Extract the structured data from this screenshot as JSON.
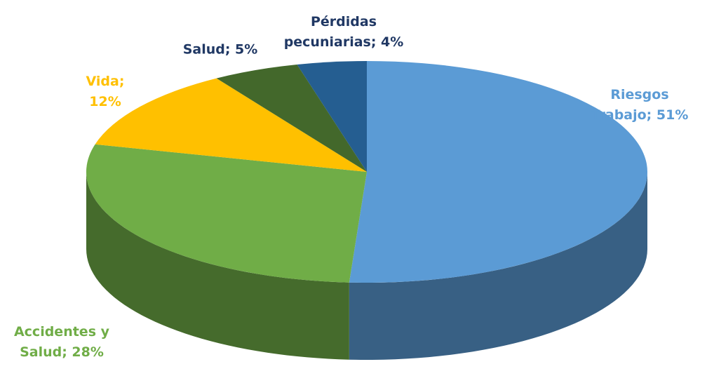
{
  "chart_data": {
    "type": "pie",
    "values": [
      51,
      28,
      12,
      5,
      4
    ],
    "value_labels": [
      "Riesgos Trabajo; 51%",
      "Accidentes y Salud; 28%",
      "Vida; 12%",
      "Salud; 5%",
      "Pérdidas pecuniarias; 4%"
    ],
    "colors": [
      "#5b9bd5",
      "#70ad47",
      "#ffc000",
      "#43682b",
      "#255e91"
    ],
    "label_colors": [
      "#5b9bd5",
      "#70ad47",
      "#ffc000",
      "#203864",
      "#203864"
    ]
  }
}
